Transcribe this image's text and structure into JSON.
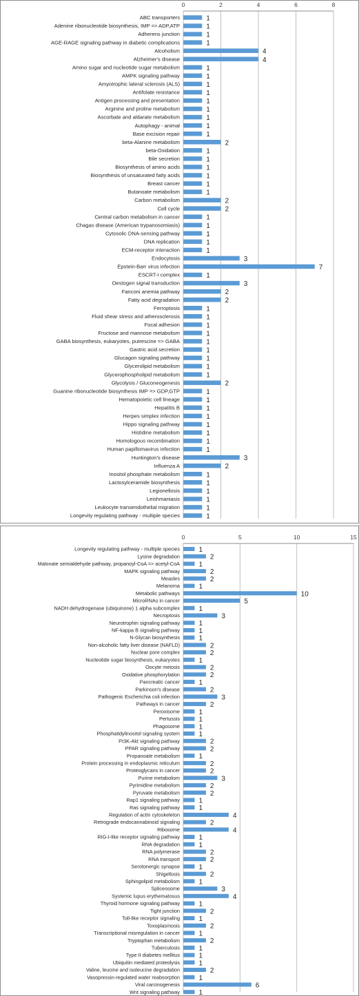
{
  "chart_data": [
    {
      "type": "bar",
      "orientation": "horizontal",
      "xlim": [
        0,
        8
      ],
      "ticks": [
        0,
        2,
        4,
        6,
        8
      ],
      "grid": true,
      "bar_color": "#5b9bd5",
      "categories": [
        "ABC transporters",
        "Adenine ribonucleotide biosynthesis, IMP => ADP,ATP",
        "Adherens junction",
        "AGE-RAGE signaling pathway in diabetic complications",
        "Alcoholism",
        "Alzheimer's disease",
        "Amino sugar and nucleotide sugar metabolism",
        "AMPK signaling pathway",
        "Amyotrophic lateral sclerosis (ALS)",
        "Antifolate resistance",
        "Antigen processing and presentation",
        "Arginine and proline metabolism",
        "Ascorbate and aldarate metabolism",
        "Autophagy - animal",
        "Base excision repair",
        "beta-Alanine metabolism",
        "beta-Oxidation",
        "Bile secretion",
        "Biosynthesis of amino acids",
        "Biosynthesis of unsaturated fatty acids",
        "Breast cancer",
        "Butanoate metabolism",
        "Carbon metabolism",
        "Cell cycle",
        "Central carbon metabolism in cancer",
        "Chagas disease (American trypanosomiasis)",
        "Cytosolic DNA-sensing pathway",
        "DNA replication",
        "ECM-receptor interaction",
        "Endocytosis",
        "Epstein-Barr virus infection",
        "ESCRT-I complex",
        "Oestogen signal transduction",
        "Fanconi anemia pathway",
        "Fatty acid degradation",
        "Ferroptosis",
        "Fluid shear stress and atherosclerosis",
        "Focal adhesion",
        "Fructose and mannose metabolism",
        "GABA biosynthesis, eukaryotes, putrescine => GABA",
        "Gastric acid secretion",
        "Glucagon signaling pathway",
        "Glycerolipid metabolism",
        "Glycerophospholipid metabolism",
        "Glycolysis / Gluconeogenesis",
        "Guanine ribonucleotide biosynthesis IMP => GDP,GTP",
        "Hematopoietic cell lineage",
        "Hepatitis B",
        "Herpes simplex infection",
        "Hippo signaling pathway",
        "Histidine metabolism",
        "Homologous recombination",
        "Human papillomavirus infection",
        "Huntington's disease",
        "Influenza A",
        "Inositol phosphate metabolism",
        "Lactosylceramide biosynthesis",
        "Legionellosis",
        "Leishmaniasis",
        "Leukocyte transendothelial migration",
        "Longevity regulating pathway - multiple species"
      ],
      "values": [
        1,
        1,
        1,
        1,
        4,
        4,
        1,
        1,
        1,
        1,
        1,
        1,
        1,
        1,
        1,
        2,
        1,
        1,
        1,
        1,
        1,
        1,
        2,
        2,
        1,
        1,
        1,
        1,
        1,
        3,
        7,
        1,
        3,
        2,
        2,
        1,
        1,
        1,
        1,
        1,
        1,
        1,
        1,
        1,
        2,
        1,
        1,
        1,
        1,
        1,
        1,
        1,
        1,
        3,
        2,
        1,
        1,
        1,
        1,
        1,
        1
      ]
    },
    {
      "type": "bar",
      "orientation": "horizontal",
      "xlim": [
        0,
        15
      ],
      "ticks": [
        0,
        5,
        10,
        15
      ],
      "grid": true,
      "bar_color": "#5b9bd5",
      "categories": [
        "Longevity regulating pathway - multiple species",
        "Lysine degradation",
        "Malonate semialdehyde pathway, propanoyl-CoA => acetyl-CoA",
        "MAPK signaling pathway",
        "Measles",
        "Melanoma",
        "Metabolic pathways",
        "MicroRNAs in cancer",
        "NADH dehydrogenase (ubiquinone) 1 alpha subcomplex",
        "Necroptosis",
        "Neurotrophin signaling pathway",
        "NF-kappa B signaling pathway",
        "N-Glycan biosynthesis",
        "Non-alcoholic fatty liver disease (NAFLD)",
        "Nuclear pore complex",
        "Nucleotide sugar biosynthesis, eukaryotes",
        "Oocyte meiosis",
        "Oxidative phosphorylation",
        "Pancreatic cancer",
        "Parkinson's disease",
        "Pathogenic Escherichia coli infection",
        "Pathways in cancer",
        "Peroxisome",
        "Pertussis",
        "Phagosome",
        "Phosphatidylinositol signaling system",
        "PI3K-Akt signaling pathway",
        "PPAR signaling pathway",
        "Propanoate metabolism",
        "Protein processing in endoplasmic reticulum",
        "Proteoglycans in cancer",
        "Purine metabolism",
        "Pyrimidine metabolism",
        "Pyruvate metabolism",
        "Rap1 signaling pathway",
        "Ras signaling pathway",
        "Regulation of actin cytoskeleton",
        "Retrograde endocannabinoid signaling",
        "Ribosome",
        "RIG-I-like receptor signaling pathway",
        "RNA degradation",
        "RNA polymerase",
        "RNA transport",
        "Serotonergic synapse",
        "Shigellosis",
        "Sphingolipid metabolism",
        "Spliceosome",
        "Systemic lupus erythematosus",
        "Thyroid hormone signaling pathway",
        "Tight junction",
        "Toll-like receptor signaling",
        "Toxoplasmosis",
        "Transcriptional misregulation in cancer",
        "Tryptophan metabolism",
        "Tuberculosis",
        "Type II diabetes mellitus",
        "Ubiquitin mediated proteolysis",
        "Valine, leucine and isoleucine degradation",
        "Vasopressin-regulated water reabsorption",
        "Viral carcinogenesis",
        "Wnt signaling pathway"
      ],
      "values": [
        1,
        2,
        1,
        2,
        2,
        1,
        10,
        5,
        1,
        3,
        1,
        1,
        1,
        2,
        2,
        1,
        2,
        2,
        1,
        2,
        3,
        2,
        1,
        1,
        1,
        1,
        2,
        2,
        1,
        2,
        2,
        3,
        2,
        2,
        1,
        1,
        4,
        2,
        4,
        1,
        1,
        2,
        2,
        1,
        2,
        1,
        3,
        4,
        1,
        2,
        1,
        2,
        1,
        2,
        1,
        1,
        1,
        2,
        1,
        6,
        1
      ]
    }
  ]
}
